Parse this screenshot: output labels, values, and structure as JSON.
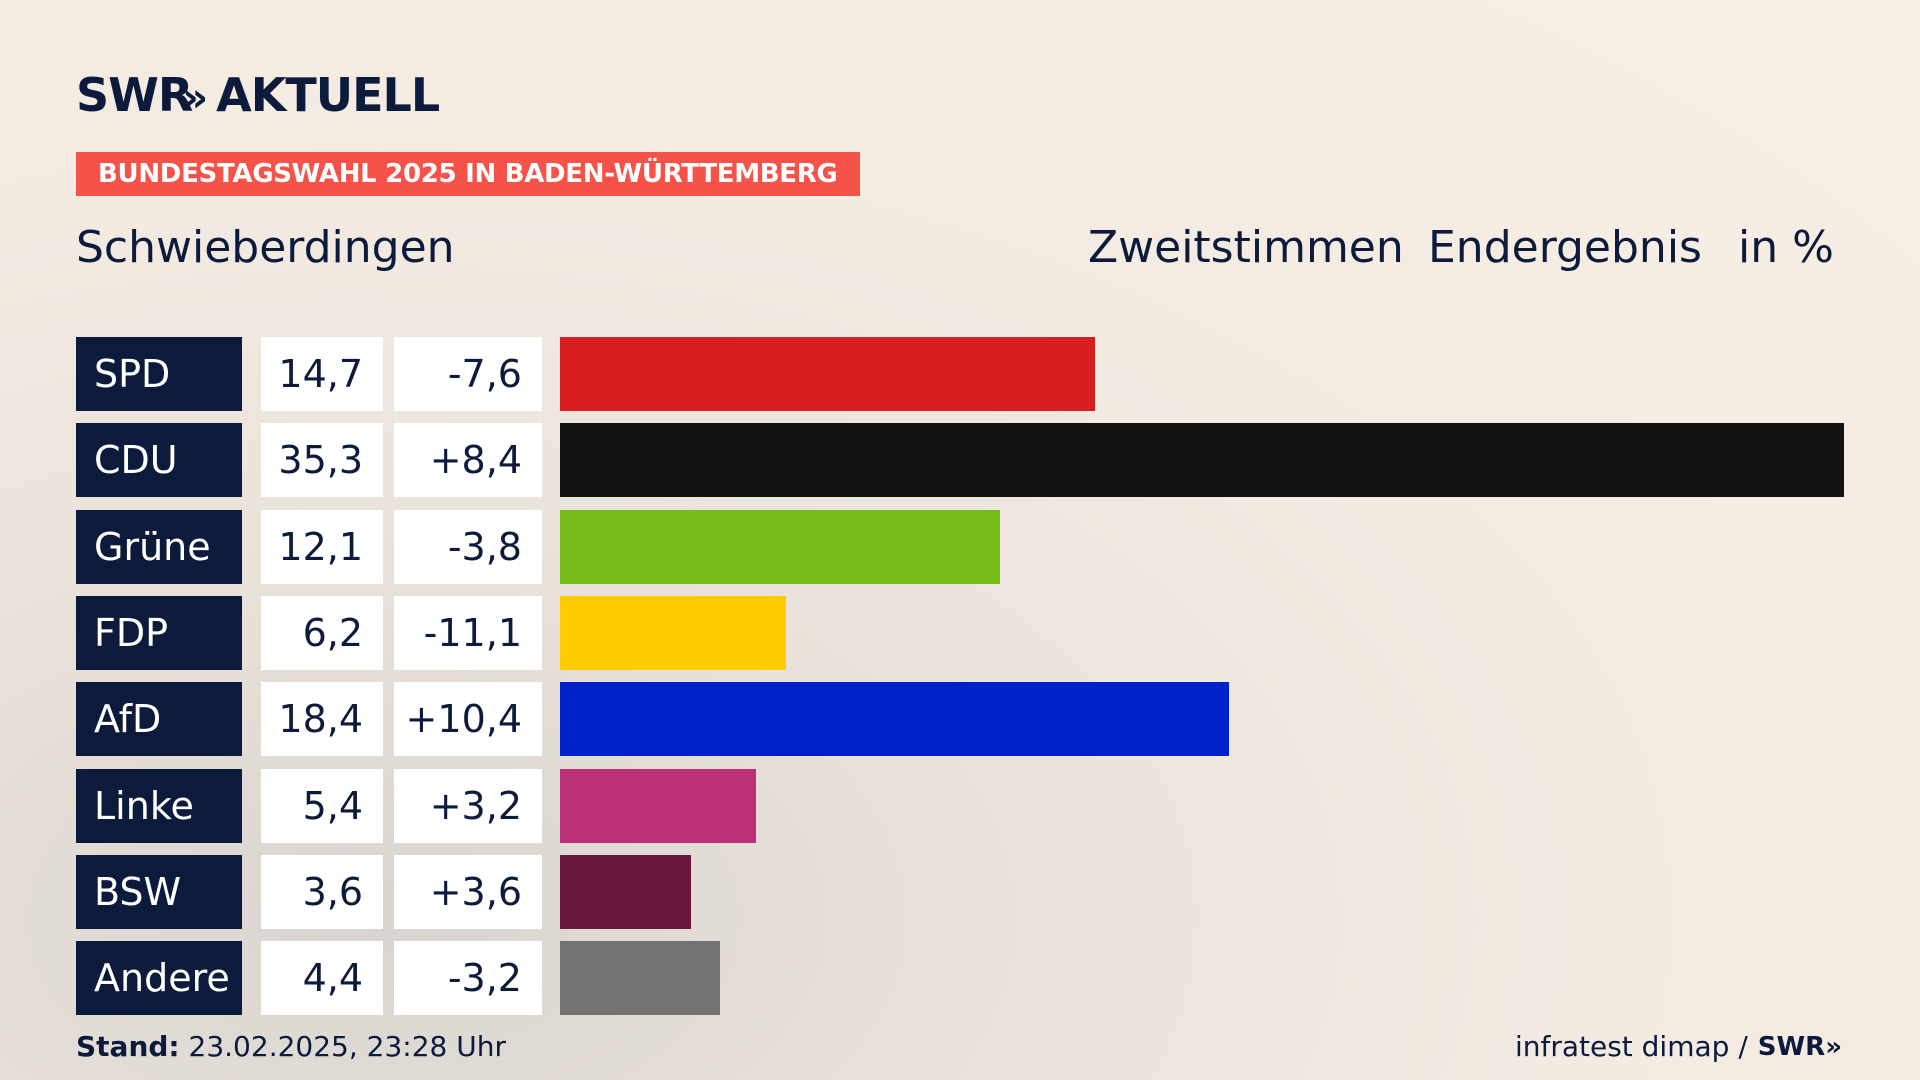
{
  "brand": {
    "logo_text": "SWR",
    "logo_chevrons": "»",
    "logo_suffix": "AKTUELL"
  },
  "banner": "BUNDESTAGSWAHL 2025 IN BADEN-WÜRTTEMBERG",
  "place": "Schwieberdingen",
  "headers": {
    "vote_type": "Zweitstimmen",
    "result": "Endergebnis",
    "unit": "in %"
  },
  "colors": {
    "accent": "#f5534a",
    "navy": "#0c1b3b"
  },
  "chart_data": {
    "type": "bar",
    "categories": [
      "SPD",
      "CDU",
      "Grüne",
      "FDP",
      "AfD",
      "Linke",
      "BSW",
      "Andere"
    ],
    "values": [
      14.7,
      35.3,
      12.1,
      6.2,
      18.4,
      5.4,
      3.6,
      4.4
    ],
    "value_labels": [
      "14,7",
      "35,3",
      "12,1",
      "6,2",
      "18,4",
      "5,4",
      "3,6",
      "4,4"
    ],
    "diff_labels": [
      "-7,6",
      "+8,4",
      "-3,8",
      "-11,1",
      "+10,4",
      "+3,2",
      "+3,6",
      "-3,2"
    ],
    "colors": [
      "#d71f21",
      "#131313",
      "#78bc1b",
      "#ffcc00",
      "#0021c8",
      "#bd3075",
      "#6a163d",
      "#717274"
    ]
  },
  "footer": {
    "stand_label": "Stand:",
    "stand_value": "23.02.2025, 23:28 Uhr",
    "source": "infratest dimap /",
    "source_logo": "SWR»"
  }
}
